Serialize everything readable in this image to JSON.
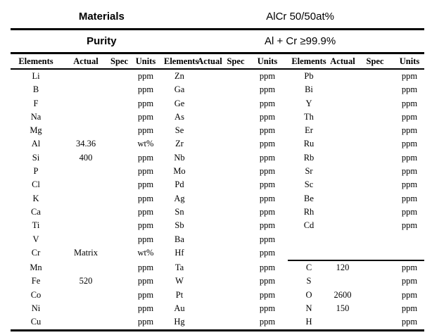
{
  "info": {
    "materials_label": "Materials",
    "materials_value": "AlCr 50/50at%",
    "purity_label": "Purity",
    "purity_value": "Al + Cr ≥99.9%"
  },
  "table": {
    "column_headers": [
      "Elements",
      "Actual",
      "Spec",
      "Units"
    ],
    "rows": [
      [
        [
          "Li",
          "",
          "",
          "ppm"
        ],
        [
          "Zn",
          "",
          "",
          "ppm"
        ],
        [
          "Pb",
          "",
          "",
          "ppm"
        ]
      ],
      [
        [
          "B",
          "",
          "",
          "ppm"
        ],
        [
          "Ga",
          "",
          "",
          "ppm"
        ],
        [
          "Bi",
          "",
          "",
          "ppm"
        ]
      ],
      [
        [
          "F",
          "",
          "",
          "ppm"
        ],
        [
          "Ge",
          "",
          "",
          "ppm"
        ],
        [
          "Y",
          "",
          "",
          "ppm"
        ]
      ],
      [
        [
          "Na",
          "",
          "",
          "ppm"
        ],
        [
          "As",
          "",
          "",
          "ppm"
        ],
        [
          "Th",
          "",
          "",
          "ppm"
        ]
      ],
      [
        [
          "Mg",
          "",
          "",
          "ppm"
        ],
        [
          "Se",
          "",
          "",
          "ppm"
        ],
        [
          "Er",
          "",
          "",
          "ppm"
        ]
      ],
      [
        [
          "Al",
          "34.36",
          "",
          "wt%"
        ],
        [
          "Zr",
          "",
          "",
          "ppm"
        ],
        [
          "Ru",
          "",
          "",
          "ppm"
        ]
      ],
      [
        [
          "Si",
          "400",
          "",
          "ppm"
        ],
        [
          "Nb",
          "",
          "",
          "ppm"
        ],
        [
          "Rb",
          "",
          "",
          "ppm"
        ]
      ],
      [
        [
          "P",
          "",
          "",
          "ppm"
        ],
        [
          "Mo",
          "",
          "",
          "ppm"
        ],
        [
          "Sr",
          "",
          "",
          "ppm"
        ]
      ],
      [
        [
          "Cl",
          "",
          "",
          "ppm"
        ],
        [
          "Pd",
          "",
          "",
          "ppm"
        ],
        [
          "Sc",
          "",
          "",
          "ppm"
        ]
      ],
      [
        [
          "K",
          "",
          "",
          "ppm"
        ],
        [
          "Ag",
          "",
          "",
          "ppm"
        ],
        [
          "Be",
          "",
          "",
          "ppm"
        ]
      ],
      [
        [
          "Ca",
          "",
          "",
          "ppm"
        ],
        [
          "Sn",
          "",
          "",
          "ppm"
        ],
        [
          "Rh",
          "",
          "",
          "ppm"
        ]
      ],
      [
        [
          "Ti",
          "",
          "",
          "ppm"
        ],
        [
          "Sb",
          "",
          "",
          "ppm"
        ],
        [
          "Cd",
          "",
          "",
          "ppm"
        ]
      ],
      [
        [
          "V",
          "",
          "",
          "ppm"
        ],
        [
          "Ba",
          "",
          "",
          "ppm"
        ],
        [
          "",
          "",
          "",
          ""
        ]
      ],
      [
        [
          "Cr",
          "Matrix",
          "",
          "wt%"
        ],
        [
          "Hf",
          "",
          "",
          "ppm"
        ],
        [
          "",
          "",
          "",
          ""
        ]
      ],
      [
        [
          "Mn",
          "",
          "",
          "ppm"
        ],
        [
          "Ta",
          "",
          "",
          "ppm"
        ],
        [
          "C",
          "120",
          "",
          "ppm"
        ]
      ],
      [
        [
          "Fe",
          "520",
          "",
          "ppm"
        ],
        [
          "W",
          "",
          "",
          "ppm"
        ],
        [
          "S",
          "",
          "",
          "ppm"
        ]
      ],
      [
        [
          "Co",
          "",
          "",
          "ppm"
        ],
        [
          "Pt",
          "",
          "",
          "ppm"
        ],
        [
          "O",
          "2600",
          "",
          "ppm"
        ]
      ],
      [
        [
          "Ni",
          "",
          "",
          "ppm"
        ],
        [
          "Au",
          "",
          "",
          "ppm"
        ],
        [
          "N",
          "150",
          "",
          "ppm"
        ]
      ],
      [
        [
          "Cu",
          "",
          "",
          "ppm"
        ],
        [
          "Hg",
          "",
          "",
          "ppm"
        ],
        [
          "H",
          "",
          "",
          "ppm"
        ]
      ]
    ]
  }
}
